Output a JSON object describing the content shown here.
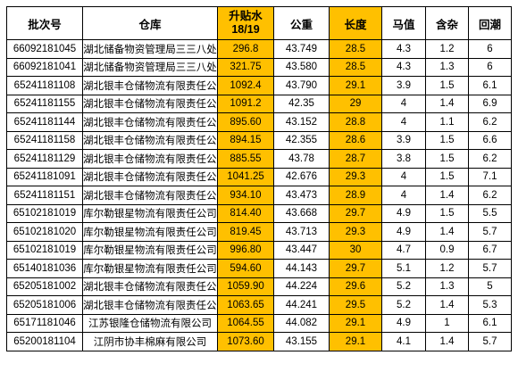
{
  "table": {
    "headers": {
      "batch": "批次号",
      "warehouse": "仓库",
      "rise_line1": "升贴水",
      "rise_line2": "18/19",
      "weight": "公重",
      "length": "长度",
      "micronaire": "马值",
      "impurity": "含杂",
      "moisture": "回潮"
    },
    "highlight_color": "#ffc000",
    "rows": [
      {
        "batch": "66092181045",
        "warehouse": "湖北储备物资管理局三三八处",
        "rise": "296.8",
        "weight": "43.749",
        "length": "28.5",
        "micronaire": "4.3",
        "impurity": "1.2",
        "moisture": "6"
      },
      {
        "batch": "66092181041",
        "warehouse": "湖北储备物资管理局三三八处",
        "rise": "321.75",
        "weight": "43.580",
        "length": "28.5",
        "micronaire": "4.3",
        "impurity": "1.3",
        "moisture": "6"
      },
      {
        "batch": "65241181108",
        "warehouse": "湖北银丰仓储物流有限责任公司",
        "rise": "1092.4",
        "weight": "43.790",
        "length": "29.1",
        "micronaire": "3.9",
        "impurity": "1.5",
        "moisture": "6.1"
      },
      {
        "batch": "65241181155",
        "warehouse": "湖北银丰仓储物流有限责任公司",
        "rise": "1091.2",
        "weight": "42.35",
        "length": "29",
        "micronaire": "4",
        "impurity": "1.4",
        "moisture": "6.9"
      },
      {
        "batch": "65241181144",
        "warehouse": "湖北银丰仓储物流有限责任公司",
        "rise": "895.60",
        "weight": "43.152",
        "length": "28.8",
        "micronaire": "4",
        "impurity": "1.1",
        "moisture": "6.2"
      },
      {
        "batch": "65241181158",
        "warehouse": "湖北银丰仓储物流有限责任公司",
        "rise": "894.15",
        "weight": "42.355",
        "length": "28.6",
        "micronaire": "3.9",
        "impurity": "1.5",
        "moisture": "6.6"
      },
      {
        "batch": "65241181129",
        "warehouse": "湖北银丰仓储物流有限责任公司",
        "rise": "885.55",
        "weight": "43.78",
        "length": "28.7",
        "micronaire": "3.8",
        "impurity": "1.5",
        "moisture": "6.2"
      },
      {
        "batch": "65241181091",
        "warehouse": "湖北银丰仓储物流有限责任公司",
        "rise": "1041.25",
        "weight": "42.676",
        "length": "29.3",
        "micronaire": "4",
        "impurity": "1.5",
        "moisture": "7.1"
      },
      {
        "batch": "65241181151",
        "warehouse": "湖北银丰仓储物流有限责任公司",
        "rise": "934.10",
        "weight": "43.473",
        "length": "28.9",
        "micronaire": "4",
        "impurity": "1.4",
        "moisture": "6.2"
      },
      {
        "batch": "65102181019",
        "warehouse": "库尔勒银星物流有限责任公司",
        "rise": "814.40",
        "weight": "43.668",
        "length": "29.7",
        "micronaire": "4.9",
        "impurity": "1.5",
        "moisture": "5.5"
      },
      {
        "batch": "65102181020",
        "warehouse": "库尔勒银星物流有限责任公司",
        "rise": "819.45",
        "weight": "43.713",
        "length": "29.3",
        "micronaire": "4.9",
        "impurity": "1.4",
        "moisture": "5.7"
      },
      {
        "batch": "65102181019",
        "warehouse": "库尔勒银星物流有限责任公司",
        "rise": "996.80",
        "weight": "43.447",
        "length": "30",
        "micronaire": "4.7",
        "impurity": "0.9",
        "moisture": "6.7"
      },
      {
        "batch": "65140181036",
        "warehouse": "库尔勒银星物流有限责任公司",
        "rise": "594.60",
        "weight": "44.143",
        "length": "29.7",
        "micronaire": "5.1",
        "impurity": "1.2",
        "moisture": "5.7"
      },
      {
        "batch": "65205181002",
        "warehouse": "湖北银丰仓储物流有限责任公司",
        "rise": "1059.90",
        "weight": "44.224",
        "length": "29.6",
        "micronaire": "5.2",
        "impurity": "1.3",
        "moisture": "5"
      },
      {
        "batch": "65205181006",
        "warehouse": "湖北银丰仓储物流有限责任公司",
        "rise": "1063.65",
        "weight": "44.241",
        "length": "29.5",
        "micronaire": "5.2",
        "impurity": "1.4",
        "moisture": "5.3"
      },
      {
        "batch": "65171181046",
        "warehouse": "江苏银隆仓储物流有限公司",
        "rise": "1064.55",
        "weight": "44.082",
        "length": "29.1",
        "micronaire": "4.9",
        "impurity": "1",
        "moisture": "6.1"
      },
      {
        "batch": "65200181104",
        "warehouse": "江阴市协丰棉麻有限公司",
        "rise": "1073.60",
        "weight": "43.155",
        "length": "29.1",
        "micronaire": "4.1",
        "impurity": "1.4",
        "moisture": "5.7"
      }
    ]
  }
}
